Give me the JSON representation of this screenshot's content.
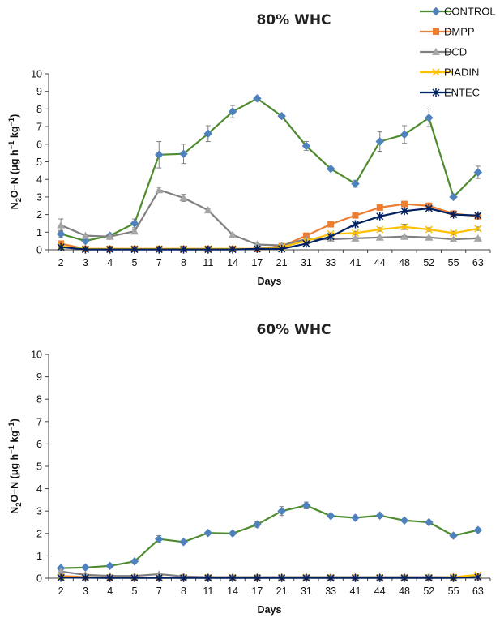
{
  "chart_data": [
    {
      "type": "line",
      "title": "80% WHC",
      "xlabel": "Days",
      "ylabel": "N2O–N (μg h⁻¹ kg⁻¹)",
      "ylim": [
        0,
        10
      ],
      "yticks": [
        0,
        1,
        2,
        3,
        4,
        5,
        6,
        7,
        8,
        9,
        10
      ],
      "categories": [
        "2",
        "3",
        "4",
        "5",
        "7",
        "8",
        "11",
        "14",
        "17",
        "21",
        "31",
        "33",
        "41",
        "44",
        "48",
        "52",
        "55",
        "63"
      ],
      "grid": false,
      "legend": "top-right",
      "series": [
        {
          "name": "CONTROL",
          "color": "#4e8b2f",
          "marker": "diamond",
          "marker_color": "#4f81bd",
          "values": [
            0.9,
            0.5,
            0.8,
            1.5,
            5.4,
            5.45,
            6.6,
            7.85,
            8.6,
            7.6,
            5.9,
            4.6,
            3.75,
            6.15,
            6.55,
            7.5,
            3.0,
            4.4
          ],
          "errors": [
            0.2,
            0.08,
            0.1,
            0.25,
            0.75,
            0.55,
            0.45,
            0.35,
            0.1,
            0.1,
            0.25,
            0.1,
            0.2,
            0.55,
            0.5,
            0.5,
            0.1,
            0.35
          ]
        },
        {
          "name": "DMPP",
          "color": "#ed7d31",
          "marker": "square",
          "marker_color": "#ed7d31",
          "values": [
            0.35,
            0.05,
            0.05,
            0.05,
            0.05,
            0.05,
            0.05,
            0.05,
            0.05,
            0.2,
            0.8,
            1.45,
            1.95,
            2.4,
            2.6,
            2.5,
            2.05,
            1.9
          ],
          "errors": [
            0.05,
            0.02,
            0.02,
            0.02,
            0.02,
            0.02,
            0.02,
            0.02,
            0.02,
            0.05,
            0.05,
            0.05,
            0.1,
            0.1,
            0.1,
            0.1,
            0.1,
            0.1
          ]
        },
        {
          "name": "DCD",
          "color": "#808080",
          "marker": "triangle",
          "marker_color": "#a5a5a5",
          "values": [
            1.4,
            0.8,
            0.75,
            1.05,
            3.4,
            2.95,
            2.25,
            0.85,
            0.3,
            0.25,
            0.6,
            0.6,
            0.65,
            0.7,
            0.75,
            0.7,
            0.6,
            0.65
          ],
          "errors": [
            0.35,
            0.05,
            0.1,
            0.1,
            0.15,
            0.2,
            0.1,
            0.05,
            0.05,
            0.05,
            0.05,
            0.05,
            0.05,
            0.05,
            0.05,
            0.05,
            0.05,
            0.05
          ]
        },
        {
          "name": "PIADIN",
          "color": "#ffc000",
          "marker": "x",
          "marker_color": "#ffc000",
          "values": [
            0.2,
            0.05,
            0.05,
            0.05,
            0.05,
            0.05,
            0.05,
            0.05,
            0.05,
            0.15,
            0.5,
            0.9,
            0.95,
            1.15,
            1.3,
            1.15,
            0.95,
            1.2
          ],
          "errors": [
            0.03,
            0.02,
            0.02,
            0.02,
            0.02,
            0.02,
            0.02,
            0.02,
            0.02,
            0.03,
            0.05,
            0.05,
            0.1,
            0.1,
            0.15,
            0.1,
            0.1,
            0.1
          ]
        },
        {
          "name": "ENTEC",
          "color": "#002060",
          "marker": "star",
          "marker_color": "#002060",
          "values": [
            0.15,
            0.02,
            0.02,
            0.02,
            0.02,
            0.02,
            0.02,
            0.02,
            0.05,
            0.05,
            0.35,
            0.75,
            1.45,
            1.9,
            2.2,
            2.35,
            2.0,
            1.95
          ],
          "errors": [
            0.02,
            0.01,
            0.01,
            0.01,
            0.01,
            0.01,
            0.01,
            0.01,
            0.01,
            0.01,
            0.05,
            0.05,
            0.1,
            0.1,
            0.1,
            0.1,
            0.1,
            0.1
          ]
        }
      ]
    },
    {
      "type": "line",
      "title": "60% WHC",
      "xlabel": "Days",
      "ylabel": "N2O–N (μg h⁻¹ kg⁻¹)",
      "ylim": [
        0,
        10
      ],
      "yticks": [
        0,
        1,
        2,
        3,
        4,
        5,
        6,
        7,
        8,
        9,
        10
      ],
      "categories": [
        "2",
        "3",
        "4",
        "5",
        "7",
        "8",
        "11",
        "14",
        "17",
        "21",
        "31",
        "33",
        "41",
        "44",
        "48",
        "52",
        "55",
        "63"
      ],
      "grid": false,
      "series": [
        {
          "name": "CONTROL",
          "color": "#4e8b2f",
          "marker": "diamond",
          "marker_color": "#4f81bd",
          "values": [
            0.45,
            0.48,
            0.55,
            0.75,
            1.75,
            1.62,
            2.02,
            2.0,
            2.4,
            3.0,
            3.25,
            2.78,
            2.7,
            2.8,
            2.58,
            2.5,
            1.9,
            2.15
          ],
          "errors": [
            0.05,
            0.03,
            0.03,
            0.05,
            0.15,
            0.08,
            0.08,
            0.08,
            0.12,
            0.2,
            0.15,
            0.05,
            0.05,
            0.05,
            0.05,
            0.05,
            0.05,
            0.08
          ]
        },
        {
          "name": "DMPP",
          "color": "#ed7d31",
          "marker": "square",
          "marker_color": "#ed7d31",
          "values": [
            0.1,
            0.05,
            0.02,
            0.02,
            0.02,
            0.02,
            0.02,
            0.02,
            0.02,
            0.02,
            0.02,
            0.02,
            0.02,
            0.02,
            0.02,
            0.02,
            0.02,
            0.05
          ],
          "errors": [
            0.02,
            0.01,
            0.01,
            0.01,
            0.01,
            0.01,
            0.01,
            0.01,
            0.01,
            0.01,
            0.01,
            0.01,
            0.01,
            0.01,
            0.01,
            0.01,
            0.01,
            0.01
          ]
        },
        {
          "name": "DCD",
          "color": "#808080",
          "marker": "triangle",
          "marker_color": "#a5a5a5",
          "values": [
            0.3,
            0.15,
            0.1,
            0.1,
            0.18,
            0.08,
            0.05,
            0.05,
            0.05,
            0.05,
            0.05,
            0.05,
            0.05,
            0.05,
            0.05,
            0.05,
            0.05,
            0.08
          ],
          "errors": [
            0.03,
            0.02,
            0.02,
            0.02,
            0.03,
            0.02,
            0.01,
            0.01,
            0.01,
            0.01,
            0.01,
            0.01,
            0.01,
            0.01,
            0.01,
            0.01,
            0.01,
            0.02
          ]
        },
        {
          "name": "PIADIN",
          "color": "#ffc000",
          "marker": "x",
          "marker_color": "#ffc000",
          "values": [
            0.05,
            0.02,
            0.02,
            0.02,
            0.02,
            0.02,
            0.02,
            0.02,
            0.02,
            0.02,
            0.02,
            0.02,
            0.02,
            0.02,
            0.02,
            0.02,
            0.05,
            0.15
          ],
          "errors": [
            0.01,
            0.01,
            0.01,
            0.01,
            0.01,
            0.01,
            0.01,
            0.01,
            0.01,
            0.01,
            0.01,
            0.01,
            0.01,
            0.01,
            0.01,
            0.01,
            0.01,
            0.02
          ]
        },
        {
          "name": "ENTEC",
          "color": "#002060",
          "marker": "star",
          "marker_color": "#002060",
          "values": [
            0.02,
            0.02,
            0.01,
            0.01,
            0.01,
            0.01,
            0.01,
            0.01,
            0.01,
            0.01,
            0.01,
            0.01,
            0.01,
            0.01,
            0.01,
            0.01,
            0.01,
            0.05
          ],
          "errors": [
            0.01,
            0.01,
            0.01,
            0.01,
            0.01,
            0.01,
            0.01,
            0.01,
            0.01,
            0.01,
            0.01,
            0.01,
            0.01,
            0.01,
            0.01,
            0.01,
            0.01,
            0.01
          ]
        }
      ]
    }
  ]
}
